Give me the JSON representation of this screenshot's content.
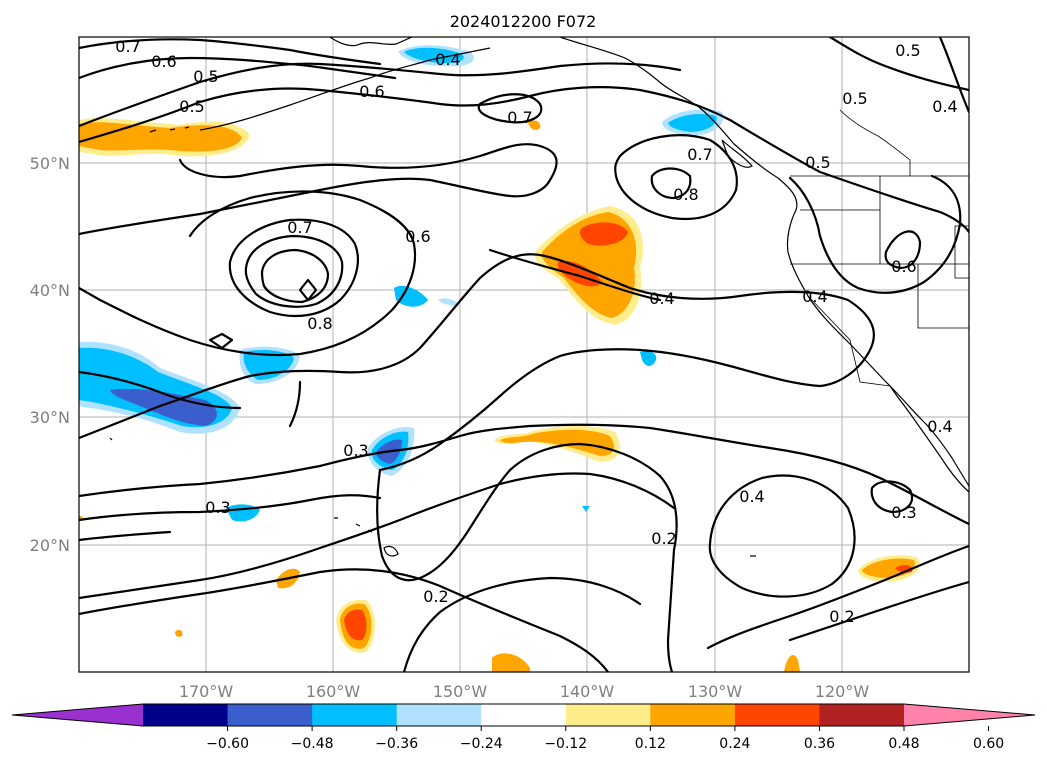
{
  "title": "2024012200 F072",
  "map": {
    "lat_labels": [
      "50°N",
      "40°N",
      "30°N",
      "20°N"
    ],
    "lon_labels": [
      "170°W",
      "160°W",
      "150°W",
      "140°W",
      "130°W",
      "120°W"
    ]
  },
  "contour_labels": [
    "0.7",
    "0.6",
    "0.5",
    "0.5",
    "0.6",
    "0.4",
    "0.7",
    "0.7",
    "0.8",
    "0.5",
    "0.5",
    "0.4",
    "0.7",
    "0.6",
    "0.8",
    "0.5",
    "0.4",
    "0.6",
    "0.4",
    "0.3",
    "0.3",
    "0.2",
    "0.2",
    "0.4",
    "0.3",
    "0.2",
    "0.4"
  ],
  "colorbar": {
    "ticks": [
      "−0.60",
      "−0.48",
      "−0.36",
      "−0.24",
      "−0.12",
      "0.12",
      "0.24",
      "0.36",
      "0.48",
      "0.60"
    ],
    "colors": [
      "#9b30d0",
      "#00008b",
      "#3a5fcd",
      "#00bfff",
      "#b0e2ff",
      "#ffffff",
      "#ffec8b",
      "#ffa500",
      "#ff4500",
      "#b22222",
      "#ff82ab"
    ]
  }
}
